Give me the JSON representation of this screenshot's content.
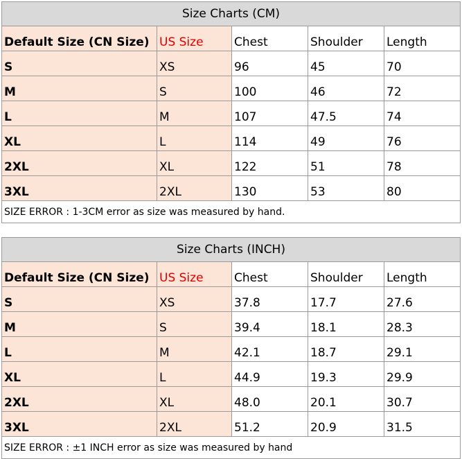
{
  "tables": [
    {
      "title": "Size Charts (CM)",
      "header": [
        "Default Size (CN Size)",
        "US Size",
        "Chest",
        "Shoulder",
        "Length"
      ],
      "rows": [
        [
          "S",
          "XS",
          "96",
          "45",
          "70"
        ],
        [
          "M",
          "S",
          "100",
          "46",
          "72"
        ],
        [
          "L",
          "M",
          "107",
          "47.5",
          "74"
        ],
        [
          "XL",
          "L",
          "114",
          "49",
          "76"
        ],
        [
          "2XL",
          "XL",
          "122",
          "51",
          "78"
        ],
        [
          "3XL",
          "2XL",
          "130",
          "53",
          "80"
        ]
      ],
      "note": "SIZE ERROR : 1-3CM error as size was measured by hand."
    },
    {
      "title": "Size Charts (INCH)",
      "header": [
        "Default Size (CN Size)",
        "US Size",
        "Chest",
        "Shoulder",
        "Length"
      ],
      "rows": [
        [
          "S",
          "XS",
          "37.8",
          "17.7",
          "27.6"
        ],
        [
          "M",
          "S",
          "39.4",
          "18.1",
          "28.3"
        ],
        [
          "L",
          "M",
          "42.1",
          "18.7",
          "29.1"
        ],
        [
          "XL",
          "L",
          "44.9",
          "19.3",
          "29.9"
        ],
        [
          "2XL",
          "XL",
          "48.0",
          "20.1",
          "30.7"
        ],
        [
          "3XL",
          "2XL",
          "51.2",
          "20.9",
          "31.5"
        ]
      ],
      "note": "SIZE ERROR : ±1 INCH error as size was measured by hand"
    }
  ]
}
